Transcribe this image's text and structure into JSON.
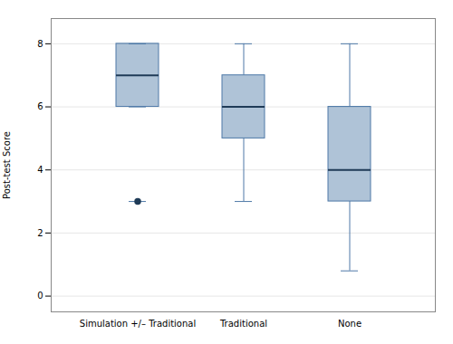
{
  "chart_data": {
    "type": "box",
    "categories": [
      "Simulation +/– Traditional",
      "Traditional",
      "None"
    ],
    "boxes": [
      {
        "median": 7,
        "q1": 6,
        "q3": 8,
        "whisker_low": 6,
        "whisker_high": 8,
        "outlier": 3,
        "outlier_cap": 3
      },
      {
        "median": 6,
        "q1": 5,
        "q3": 7,
        "whisker_low": 3,
        "whisker_high": 8
      },
      {
        "median": 4,
        "q1": 3,
        "q3": 6,
        "whisker_low": 0.8,
        "whisker_high": 8
      }
    ],
    "ylabel": "Post-test Score",
    "ylim": [
      -0.5,
      8.8
    ],
    "yticks": [
      0,
      2,
      4,
      6,
      8
    ],
    "grid": true
  }
}
